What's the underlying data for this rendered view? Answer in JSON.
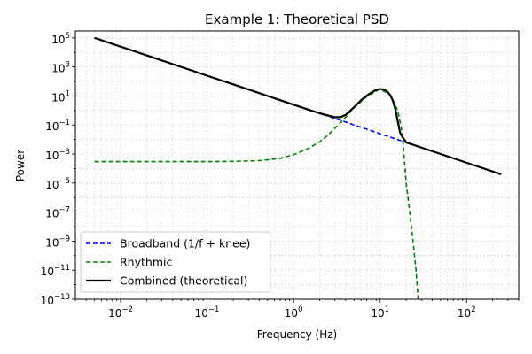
{
  "chart_data": {
    "type": "line",
    "title": "Example 1: Theoretical PSD",
    "xlabel": "Frequency (Hz)",
    "ylabel": "Power",
    "x_scale": "log",
    "y_scale": "log",
    "xlim": [
      0.003,
      400
    ],
    "ylim": [
      1e-13,
      300000
    ],
    "grid": true,
    "legend_position": "lower-left",
    "x_ticks": [
      {
        "value": 0.01,
        "base": "10",
        "exp": "−2"
      },
      {
        "value": 0.1,
        "base": "10",
        "exp": "−1"
      },
      {
        "value": 1,
        "base": "10",
        "exp": "0"
      },
      {
        "value": 10,
        "base": "10",
        "exp": "1"
      },
      {
        "value": 100,
        "base": "10",
        "exp": "2"
      }
    ],
    "y_ticks": [
      {
        "value": 1e-13,
        "base": "10",
        "exp": "−13"
      },
      {
        "value": 1e-11,
        "base": "10",
        "exp": "−11"
      },
      {
        "value": 1e-09,
        "base": "10",
        "exp": "−9"
      },
      {
        "value": 1e-07,
        "base": "10",
        "exp": "−7"
      },
      {
        "value": 1e-05,
        "base": "10",
        "exp": "−5"
      },
      {
        "value": 0.001,
        "base": "10",
        "exp": "−3"
      },
      {
        "value": 0.1,
        "base": "10",
        "exp": "−1"
      },
      {
        "value": 10,
        "base": "10",
        "exp": "1"
      },
      {
        "value": 1000,
        "base": "10",
        "exp": "3"
      },
      {
        "value": 100000,
        "base": "10",
        "exp": "5"
      }
    ],
    "series": [
      {
        "name": "Broadband (1/f + knee)",
        "color": "#0000ff",
        "style": "dashed",
        "x": [
          0.005,
          0.01,
          0.03,
          0.1,
          0.3,
          1,
          2,
          3,
          4,
          5,
          7,
          10,
          15,
          20,
          50,
          100,
          250
        ],
        "y": [
          100000,
          25000,
          2800,
          250,
          28,
          2.5,
          0.63,
          0.28,
          0.16,
          0.1,
          0.051,
          0.025,
          0.011,
          0.0063,
          0.001,
          0.00025,
          4e-05
        ]
      },
      {
        "name": "Rhythmic",
        "color": "#008000",
        "style": "dashed",
        "x": [
          0.005,
          0.05,
          0.1,
          0.2,
          0.4,
          0.7,
          1,
          1.5,
          2,
          2.5,
          3,
          3.5,
          4,
          5,
          7,
          10,
          13,
          16,
          18,
          20,
          22,
          24,
          26,
          27.5
        ],
        "y": [
          0.0003,
          0.0003,
          0.0003,
          0.00031,
          0.00035,
          0.0005,
          0.0009,
          0.0025,
          0.007,
          0.02,
          0.06,
          0.15,
          0.35,
          1.5,
          9,
          30,
          12,
          1,
          0.03,
          1e-05,
          1e-07,
          1e-09,
          1e-11,
          1e-13
        ]
      },
      {
        "name": "Combined (theoretical)",
        "color": "#000000",
        "style": "solid",
        "x": [
          0.005,
          0.01,
          0.03,
          0.1,
          0.3,
          1,
          2,
          3,
          3.5,
          4,
          5,
          6,
          7,
          8,
          9,
          10,
          11,
          12,
          13,
          14,
          15,
          16,
          17,
          18,
          20,
          50,
          100,
          250
        ],
        "y": [
          100000,
          25000,
          2800,
          250,
          28,
          2.5,
          0.64,
          0.34,
          0.35,
          0.5,
          1.7,
          5,
          10.5,
          18,
          26,
          30,
          28,
          21,
          12,
          5,
          1.2,
          0.18,
          0.03,
          0.016,
          0.0063,
          0.001,
          0.00025,
          4e-05
        ]
      }
    ]
  }
}
